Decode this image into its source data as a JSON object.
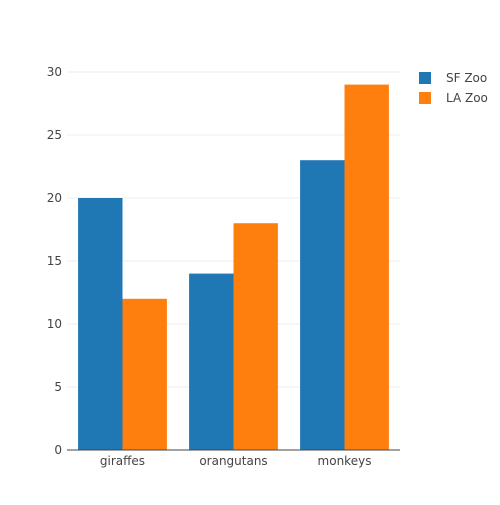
{
  "chart_data": {
    "type": "bar",
    "categories": [
      "giraffes",
      "orangutans",
      "monkeys"
    ],
    "series": [
      {
        "name": "SF Zoo",
        "values": [
          20,
          14,
          23
        ],
        "color": "#1f77b4"
      },
      {
        "name": "LA Zoo",
        "values": [
          12,
          18,
          29
        ],
        "color": "#ff7f0e"
      }
    ],
    "title": "",
    "xlabel": "",
    "ylabel": "",
    "ylim": [
      0,
      30
    ],
    "yticks": [
      0,
      5,
      10,
      15,
      20,
      25,
      30
    ],
    "grid": true,
    "legend_position": "top-right"
  }
}
